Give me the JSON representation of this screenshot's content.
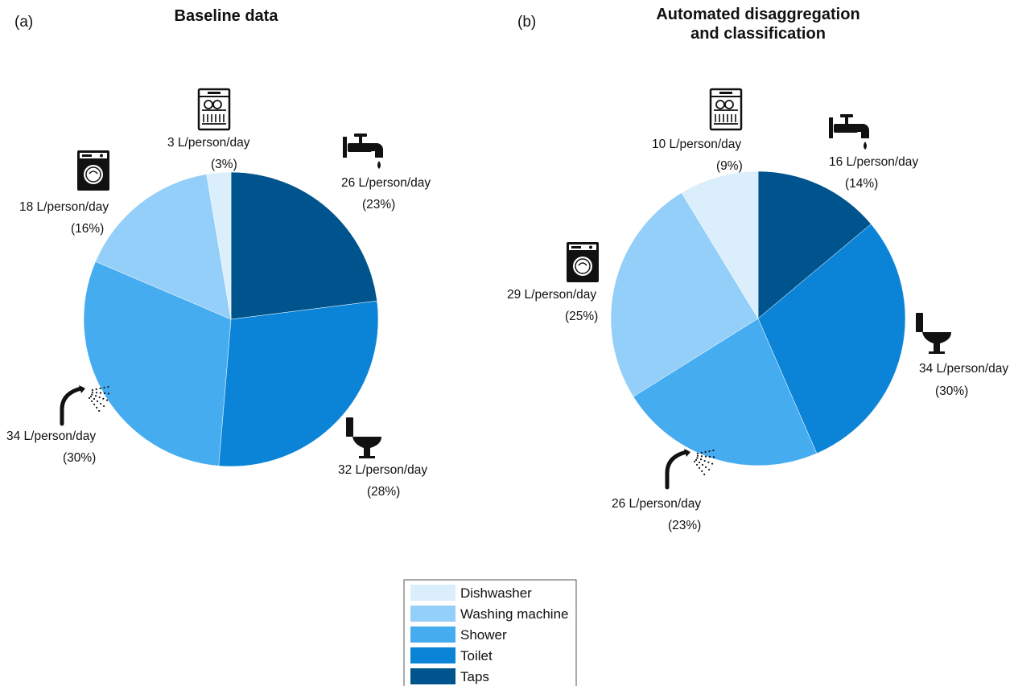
{
  "colors": {
    "Dishwasher": "#dbeefb",
    "Washing machine": "#93cff8",
    "Shower": "#46acf0",
    "Toilet": "#0b84d7",
    "Taps": "#00548e"
  },
  "legend": {
    "items": [
      "Dishwasher",
      "Washing machine",
      "Shower",
      "Toilet",
      "Taps"
    ],
    "placement": "bottom-center"
  },
  "chart_data": [
    {
      "type": "pie",
      "panel_label": "(a)",
      "title": "Baseline data",
      "slices": [
        {
          "name": "Taps",
          "value": 26,
          "label": "26 L/person/day",
          "percent": "(23%)",
          "icon": "tap-icon"
        },
        {
          "name": "Toilet",
          "value": 32,
          "label": "32 L/person/day",
          "percent": "(28%)",
          "icon": "toilet-icon"
        },
        {
          "name": "Shower",
          "value": 34,
          "label": "34 L/person/day",
          "percent": "(30%)",
          "icon": "shower-icon"
        },
        {
          "name": "Washing machine",
          "value": 18,
          "label": "18 L/person/day",
          "percent": "(16%)",
          "icon": "washing-machine-icon"
        },
        {
          "name": "Dishwasher",
          "value": 3,
          "label": "3 L/person/day",
          "percent": "(3%)",
          "icon": "dishwasher-icon"
        }
      ]
    },
    {
      "type": "pie",
      "panel_label": "(b)",
      "title": "Automated disaggregation\nand classification",
      "slices": [
        {
          "name": "Taps",
          "value": 16,
          "label": "16 L/person/day",
          "percent": "(14%)",
          "icon": "tap-icon"
        },
        {
          "name": "Toilet",
          "value": 34,
          "label": "34 L/person/day",
          "percent": "(30%)",
          "icon": "toilet-icon"
        },
        {
          "name": "Shower",
          "value": 26,
          "label": "26 L/person/day",
          "percent": "(23%)",
          "icon": "shower-icon"
        },
        {
          "name": "Washing machine",
          "value": 29,
          "label": "29 L/person/day",
          "percent": "(25%)",
          "icon": "washing-machine-icon"
        },
        {
          "name": "Dishwasher",
          "value": 10,
          "label": "10 L/person/day",
          "percent": "(9%)",
          "icon": "dishwasher-icon"
        }
      ]
    }
  ]
}
